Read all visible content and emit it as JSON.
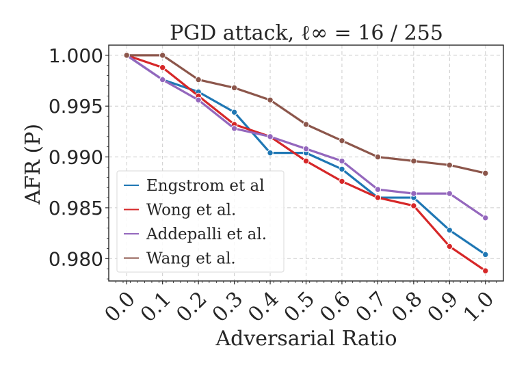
{
  "chart_data": {
    "type": "line",
    "title": "PGD attack, ℓ∞ = 16 / 255",
    "xlabel": "Adversarial Ratio",
    "ylabel": "AFR (P)",
    "x": [
      0.0,
      0.1,
      0.2,
      0.3,
      0.4,
      0.5,
      0.6,
      0.7,
      0.8,
      0.9,
      1.0
    ],
    "x_tick_labels": [
      "0.0",
      "0.1",
      "0.2",
      "0.3",
      "0.4",
      "0.5",
      "0.6",
      "0.7",
      "0.8",
      "0.9",
      "1.0"
    ],
    "y_ticks": [
      0.98,
      0.985,
      0.99,
      0.995,
      1.0
    ],
    "y_tick_labels": [
      "0.980",
      "0.985",
      "0.990",
      "0.995",
      "1.000"
    ],
    "xlim": [
      -0.05,
      1.05
    ],
    "ylim": [
      0.9778,
      1.001
    ],
    "grid": true,
    "legend_position": "center-left",
    "series": [
      {
        "name": "Engstrom et al",
        "color": "#1f77b4",
        "values": [
          1.0,
          0.9976,
          0.9964,
          0.9944,
          0.9904,
          0.9904,
          0.9888,
          0.986,
          0.986,
          0.9828,
          0.9804
        ]
      },
      {
        "name": "Wong et al.",
        "color": "#d62728",
        "values": [
          1.0,
          0.9988,
          0.996,
          0.9932,
          0.992,
          0.9896,
          0.9876,
          0.986,
          0.9852,
          0.9812,
          0.9788
        ]
      },
      {
        "name": "Addepalli et al.",
        "color": "#9467bd",
        "values": [
          1.0,
          0.9976,
          0.9956,
          0.9928,
          0.992,
          0.9908,
          0.9896,
          0.9868,
          0.9864,
          0.9864,
          0.984
        ]
      },
      {
        "name": "Wang et al.",
        "color": "#8c564b",
        "values": [
          1.0,
          1.0,
          0.9976,
          0.9968,
          0.9956,
          0.9932,
          0.9916,
          0.99,
          0.9896,
          0.9892,
          0.9884
        ]
      }
    ]
  }
}
